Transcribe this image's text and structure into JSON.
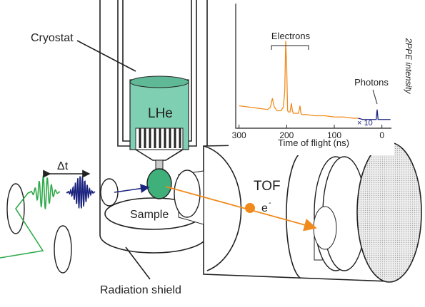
{
  "labels": {
    "cryostat": "Cryostat",
    "lhe": "LHe",
    "delta_t": "Δt",
    "sample": "Sample",
    "tof": "TOF",
    "electron": "e",
    "electron_charge": "-",
    "radiation_shield": "Radiation shield"
  },
  "chart_data": {
    "type": "line",
    "x_label": "Time of flight (ns)",
    "y_label": "2PPE intensity",
    "annotations": [
      "Electrons",
      "Photons",
      "× 10"
    ],
    "xlim": [
      307,
      -20
    ],
    "xticks": [
      300,
      200,
      100,
      0
    ],
    "ylim": [
      0,
      100
    ],
    "series": [
      {
        "color": "#f08a1c",
        "x": [
          300,
          280,
          260,
          240,
          234,
          230,
          226,
          220,
          212,
          207,
          204,
          202,
          200,
          198,
          196,
          193,
          190,
          188,
          186,
          180,
          175,
          172,
          170,
          168,
          160,
          140,
          120,
          100,
          80,
          60,
          50
        ],
        "values": [
          18,
          17,
          16,
          15,
          17,
          24,
          17,
          14,
          14,
          17,
          30,
          70,
          50,
          14,
          13,
          13,
          20,
          14,
          12,
          12,
          12,
          18,
          12,
          11,
          11,
          10,
          10,
          9,
          9,
          8,
          8
        ]
      },
      {
        "color": "#1a237e",
        "x": [
          50,
          40,
          30,
          20,
          14,
          12,
          10,
          8,
          6,
          0,
          -10,
          -18
        ],
        "values": [
          8,
          7,
          7,
          7,
          7,
          7,
          15,
          7,
          7,
          7,
          7,
          7
        ]
      }
    ]
  }
}
